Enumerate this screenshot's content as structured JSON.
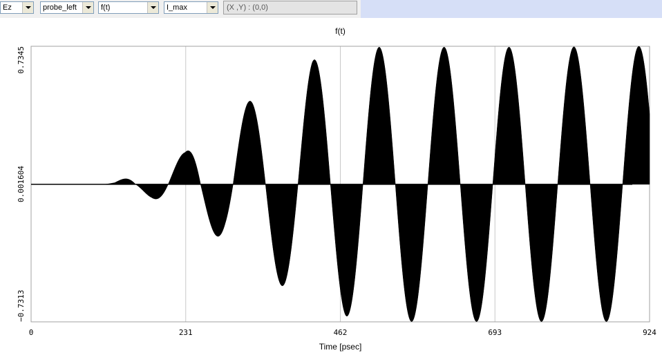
{
  "toolbar": {
    "component": "Ez",
    "probe": "probe_left",
    "function": "f(t)",
    "mode": "I_max",
    "coordinate_readout": "(X ,Y) : (0,0)"
  },
  "chart_data": {
    "type": "line",
    "title": "f(t)",
    "xlabel": "Time [psec]",
    "ylabel": "",
    "xlim": [
      0,
      924
    ],
    "ylim": [
      -0.7313,
      0.7345
    ],
    "x_ticks": [
      "0",
      "231",
      "462",
      "693",
      "924"
    ],
    "y_ticks": [
      "-0.7313",
      "0.001604",
      "0.7345"
    ],
    "grid": true,
    "line_color": "#000000",
    "series": [
      {
        "envelope_upper": [
          [
            0,
            0
          ],
          [
            100,
            0
          ],
          [
            125,
            0.01
          ],
          [
            150,
            0.05
          ],
          [
            190,
            0.1
          ],
          [
            230,
            0.17
          ],
          [
            260,
            0.31
          ],
          [
            315,
            0.42
          ],
          [
            365,
            0.52
          ],
          [
            420,
            0.66
          ],
          [
            470,
            0.71
          ],
          [
            520,
            0.73
          ],
          [
            620,
            0.73
          ],
          [
            750,
            0.73
          ],
          [
            924,
            0.7345
          ]
        ],
        "envelope_lower": [
          [
            0,
            0
          ],
          [
            100,
            0
          ],
          [
            140,
            -0.01
          ],
          [
            180,
            -0.07
          ],
          [
            240,
            -0.2
          ],
          [
            290,
            -0.3
          ],
          [
            330,
            -0.45
          ],
          [
            380,
            -0.55
          ],
          [
            430,
            -0.63
          ],
          [
            470,
            -0.7
          ],
          [
            510,
            -0.73
          ],
          [
            600,
            -0.73
          ],
          [
            700,
            -0.73
          ],
          [
            810,
            -0.73
          ],
          [
            900,
            -0.73
          ],
          [
            924,
            -0.73
          ]
        ],
        "period": 97,
        "phase_peak": 229
      }
    ]
  }
}
